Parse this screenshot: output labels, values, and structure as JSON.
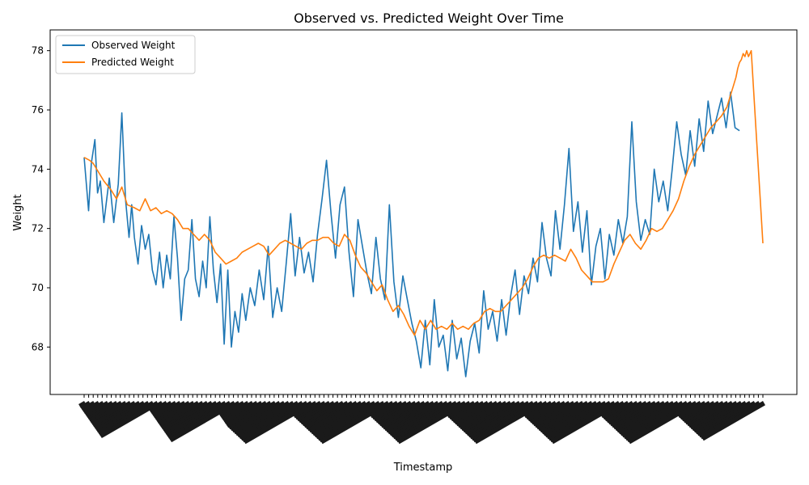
{
  "chart_data": {
    "type": "line",
    "title": "Observed vs. Predicted Weight Over Time",
    "xlabel": "Timestamp",
    "ylabel": "Weight",
    "ylim": [
      66.4,
      78.7
    ],
    "yticks": [
      68,
      70,
      72,
      74,
      76,
      78
    ],
    "grid": false,
    "legend_position": "top-left",
    "x_tick_labels_legible": false,
    "x_count": 730,
    "series": [
      {
        "name": "Observed Weight",
        "color": "#1f77b4",
        "points": [
          [
            0,
            74.4
          ],
          [
            5,
            72.6
          ],
          [
            8,
            74.2
          ],
          [
            12,
            75.0
          ],
          [
            15,
            73.2
          ],
          [
            18,
            73.6
          ],
          [
            22,
            72.2
          ],
          [
            28,
            73.7
          ],
          [
            33,
            72.2
          ],
          [
            38,
            73.5
          ],
          [
            42,
            75.9
          ],
          [
            46,
            73.0
          ],
          [
            50,
            71.7
          ],
          [
            53,
            72.8
          ],
          [
            56,
            71.7
          ],
          [
            60,
            70.8
          ],
          [
            64,
            72.1
          ],
          [
            68,
            71.3
          ],
          [
            72,
            71.8
          ],
          [
            76,
            70.6
          ],
          [
            80,
            70.1
          ],
          [
            84,
            71.2
          ],
          [
            88,
            70.0
          ],
          [
            92,
            71.1
          ],
          [
            96,
            70.3
          ],
          [
            100,
            72.4
          ],
          [
            104,
            71.0
          ],
          [
            108,
            68.9
          ],
          [
            112,
            70.3
          ],
          [
            116,
            70.6
          ],
          [
            120,
            72.3
          ],
          [
            124,
            70.3
          ],
          [
            128,
            69.7
          ],
          [
            132,
            70.9
          ],
          [
            136,
            70.0
          ],
          [
            140,
            72.4
          ],
          [
            144,
            70.6
          ],
          [
            148,
            69.5
          ],
          [
            152,
            70.8
          ],
          [
            156,
            68.1
          ],
          [
            160,
            70.6
          ],
          [
            164,
            68.0
          ],
          [
            168,
            69.2
          ],
          [
            172,
            68.5
          ],
          [
            176,
            69.8
          ],
          [
            180,
            68.9
          ],
          [
            185,
            70.0
          ],
          [
            190,
            69.4
          ],
          [
            195,
            70.6
          ],
          [
            200,
            69.6
          ],
          [
            205,
            71.4
          ],
          [
            210,
            69.0
          ],
          [
            215,
            70.0
          ],
          [
            220,
            69.2
          ],
          [
            225,
            70.8
          ],
          [
            230,
            72.5
          ],
          [
            235,
            70.4
          ],
          [
            240,
            71.7
          ],
          [
            245,
            70.5
          ],
          [
            250,
            71.2
          ],
          [
            255,
            70.2
          ],
          [
            260,
            71.8
          ],
          [
            265,
            73.0
          ],
          [
            270,
            74.3
          ],
          [
            275,
            72.5
          ],
          [
            280,
            71.0
          ],
          [
            285,
            72.8
          ],
          [
            290,
            73.4
          ],
          [
            295,
            71.2
          ],
          [
            300,
            69.7
          ],
          [
            305,
            72.3
          ],
          [
            310,
            71.4
          ],
          [
            315,
            70.5
          ],
          [
            320,
            69.8
          ],
          [
            325,
            71.7
          ],
          [
            330,
            70.3
          ],
          [
            335,
            69.6
          ],
          [
            340,
            72.8
          ],
          [
            345,
            70.2
          ],
          [
            350,
            69.0
          ],
          [
            355,
            70.4
          ],
          [
            360,
            69.6
          ],
          [
            365,
            68.8
          ],
          [
            370,
            68.2
          ],
          [
            375,
            67.3
          ],
          [
            380,
            68.9
          ],
          [
            385,
            67.4
          ],
          [
            390,
            69.6
          ],
          [
            395,
            68.0
          ],
          [
            400,
            68.4
          ],
          [
            405,
            67.2
          ],
          [
            410,
            68.9
          ],
          [
            415,
            67.6
          ],
          [
            420,
            68.3
          ],
          [
            425,
            67.0
          ],
          [
            430,
            68.2
          ],
          [
            435,
            68.8
          ],
          [
            440,
            67.8
          ],
          [
            445,
            69.9
          ],
          [
            450,
            68.6
          ],
          [
            455,
            69.2
          ],
          [
            460,
            68.2
          ],
          [
            465,
            69.6
          ],
          [
            470,
            68.4
          ],
          [
            475,
            69.7
          ],
          [
            480,
            70.6
          ],
          [
            485,
            69.1
          ],
          [
            490,
            70.4
          ],
          [
            495,
            69.8
          ],
          [
            500,
            71.0
          ],
          [
            505,
            70.2
          ],
          [
            510,
            72.2
          ],
          [
            515,
            71.0
          ],
          [
            520,
            70.4
          ],
          [
            525,
            72.6
          ],
          [
            530,
            71.3
          ],
          [
            535,
            72.8
          ],
          [
            540,
            74.7
          ],
          [
            545,
            71.9
          ],
          [
            550,
            72.9
          ],
          [
            555,
            71.2
          ],
          [
            560,
            72.6
          ],
          [
            565,
            70.1
          ],
          [
            570,
            71.4
          ],
          [
            575,
            72.0
          ],
          [
            580,
            70.3
          ],
          [
            585,
            71.8
          ],
          [
            590,
            71.1
          ],
          [
            595,
            72.3
          ],
          [
            600,
            71.5
          ],
          [
            605,
            72.4
          ],
          [
            610,
            75.6
          ],
          [
            615,
            72.9
          ],
          [
            620,
            71.6
          ],
          [
            625,
            72.3
          ],
          [
            630,
            71.8
          ],
          [
            635,
            74.0
          ],
          [
            640,
            72.9
          ],
          [
            645,
            73.6
          ],
          [
            650,
            72.6
          ],
          [
            655,
            74.0
          ],
          [
            660,
            75.6
          ],
          [
            665,
            74.5
          ],
          [
            670,
            73.8
          ],
          [
            675,
            75.3
          ],
          [
            680,
            74.1
          ],
          [
            685,
            75.7
          ],
          [
            690,
            74.6
          ],
          [
            695,
            76.3
          ],
          [
            700,
            75.2
          ],
          [
            705,
            75.8
          ],
          [
            710,
            76.4
          ],
          [
            715,
            75.4
          ],
          [
            720,
            76.6
          ],
          [
            725,
            75.4
          ],
          [
            730,
            75.3
          ]
        ]
      },
      {
        "name": "Predicted Weight",
        "color": "#ff7f0e",
        "points": [
          [
            0,
            74.4
          ],
          [
            6,
            74.3
          ],
          [
            10,
            74.2
          ],
          [
            16,
            73.9
          ],
          [
            22,
            73.6
          ],
          [
            30,
            73.3
          ],
          [
            36,
            73.0
          ],
          [
            42,
            73.4
          ],
          [
            48,
            72.8
          ],
          [
            56,
            72.7
          ],
          [
            62,
            72.6
          ],
          [
            68,
            73.0
          ],
          [
            74,
            72.6
          ],
          [
            80,
            72.7
          ],
          [
            86,
            72.5
          ],
          [
            92,
            72.6
          ],
          [
            98,
            72.5
          ],
          [
            104,
            72.3
          ],
          [
            110,
            72.0
          ],
          [
            116,
            72.0
          ],
          [
            122,
            71.8
          ],
          [
            128,
            71.6
          ],
          [
            134,
            71.8
          ],
          [
            140,
            71.6
          ],
          [
            146,
            71.2
          ],
          [
            152,
            71.0
          ],
          [
            158,
            70.8
          ],
          [
            164,
            70.9
          ],
          [
            170,
            71.0
          ],
          [
            176,
            71.2
          ],
          [
            182,
            71.3
          ],
          [
            188,
            71.4
          ],
          [
            194,
            71.5
          ],
          [
            200,
            71.4
          ],
          [
            206,
            71.1
          ],
          [
            212,
            71.3
          ],
          [
            218,
            71.5
          ],
          [
            224,
            71.6
          ],
          [
            230,
            71.5
          ],
          [
            236,
            71.4
          ],
          [
            242,
            71.3
          ],
          [
            248,
            71.5
          ],
          [
            254,
            71.6
          ],
          [
            260,
            71.6
          ],
          [
            266,
            71.7
          ],
          [
            272,
            71.7
          ],
          [
            278,
            71.5
          ],
          [
            284,
            71.4
          ],
          [
            290,
            71.8
          ],
          [
            296,
            71.6
          ],
          [
            302,
            71.1
          ],
          [
            308,
            70.7
          ],
          [
            314,
            70.5
          ],
          [
            320,
            70.2
          ],
          [
            326,
            69.9
          ],
          [
            332,
            70.1
          ],
          [
            338,
            69.6
          ],
          [
            344,
            69.2
          ],
          [
            350,
            69.4
          ],
          [
            356,
            69.1
          ],
          [
            362,
            68.7
          ],
          [
            368,
            68.4
          ],
          [
            374,
            68.9
          ],
          [
            380,
            68.6
          ],
          [
            386,
            68.9
          ],
          [
            392,
            68.6
          ],
          [
            398,
            68.7
          ],
          [
            404,
            68.6
          ],
          [
            410,
            68.8
          ],
          [
            416,
            68.6
          ],
          [
            422,
            68.7
          ],
          [
            428,
            68.6
          ],
          [
            434,
            68.8
          ],
          [
            440,
            68.9
          ],
          [
            446,
            69.2
          ],
          [
            452,
            69.3
          ],
          [
            458,
            69.2
          ],
          [
            464,
            69.2
          ],
          [
            470,
            69.4
          ],
          [
            476,
            69.6
          ],
          [
            482,
            69.8
          ],
          [
            488,
            70.0
          ],
          [
            494,
            70.3
          ],
          [
            500,
            70.7
          ],
          [
            506,
            71.0
          ],
          [
            512,
            71.1
          ],
          [
            518,
            71.0
          ],
          [
            524,
            71.1
          ],
          [
            530,
            71.0
          ],
          [
            536,
            70.9
          ],
          [
            542,
            71.3
          ],
          [
            548,
            71.0
          ],
          [
            554,
            70.6
          ],
          [
            560,
            70.4
          ],
          [
            566,
            70.2
          ],
          [
            572,
            70.2
          ],
          [
            578,
            70.2
          ],
          [
            584,
            70.3
          ],
          [
            590,
            70.8
          ],
          [
            596,
            71.2
          ],
          [
            602,
            71.6
          ],
          [
            608,
            71.8
          ],
          [
            614,
            71.5
          ],
          [
            620,
            71.3
          ],
          [
            626,
            71.6
          ],
          [
            632,
            72.0
          ],
          [
            638,
            71.9
          ],
          [
            644,
            72.0
          ],
          [
            650,
            72.3
          ],
          [
            656,
            72.6
          ],
          [
            662,
            73.0
          ],
          [
            668,
            73.6
          ],
          [
            674,
            74.1
          ],
          [
            680,
            74.5
          ],
          [
            686,
            74.8
          ],
          [
            692,
            75.1
          ],
          [
            698,
            75.4
          ],
          [
            704,
            75.6
          ],
          [
            710,
            75.8
          ],
          [
            716,
            76.1
          ],
          [
            720,
            76.5
          ],
          [
            723,
            76.8
          ],
          [
            726,
            77.1
          ],
          [
            728,
            77.4
          ],
          [
            730,
            77.6
          ],
          [
            732,
            77.7
          ],
          [
            734,
            77.9
          ],
          [
            736,
            77.8
          ],
          [
            738,
            78.0
          ],
          [
            740,
            77.8
          ],
          [
            743,
            78.0
          ],
          [
            748,
            75.5
          ],
          [
            753,
            73.0
          ],
          [
            756,
            71.5
          ]
        ]
      }
    ]
  }
}
